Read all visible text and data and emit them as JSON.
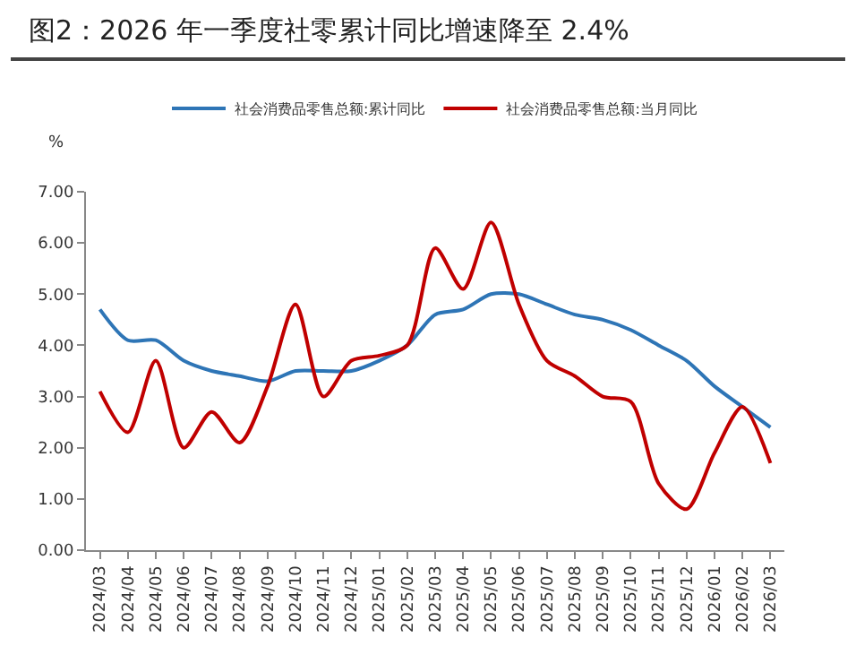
{
  "chart_data": {
    "type": "line",
    "title": "图2：2026 年一季度社零累计同比增速降至 2.4%",
    "ylabel": "%",
    "categories": [
      "2024/03",
      "2024/04",
      "2024/05",
      "2024/06",
      "2024/07",
      "2024/08",
      "2024/09",
      "2024/10",
      "2024/11",
      "2024/12",
      "2025/01",
      "2025/02",
      "2025/03",
      "2025/04",
      "2025/05",
      "2025/06",
      "2025/07",
      "2025/08",
      "2025/09",
      "2025/10",
      "2025/11",
      "2025/12",
      "2026/01",
      "2026/02",
      "2026/03"
    ],
    "series": [
      {
        "name": "社会消费品零售总额:累计同比",
        "color": "#2e75b6",
        "values": [
          4.7,
          4.1,
          4.1,
          3.7,
          3.5,
          3.4,
          3.3,
          3.5,
          3.5,
          3.5,
          3.7,
          4.0,
          4.6,
          4.7,
          5.0,
          5.0,
          4.8,
          4.6,
          4.5,
          4.3,
          4.0,
          3.7,
          3.2,
          2.8,
          2.4
        ]
      },
      {
        "name": "社会消费品零售总额:当月同比",
        "color": "#c00000",
        "values": [
          3.1,
          2.3,
          3.7,
          2.0,
          2.7,
          2.1,
          3.2,
          4.8,
          3.0,
          3.7,
          3.8,
          4.0,
          5.9,
          5.1,
          6.4,
          4.8,
          3.7,
          3.4,
          3.0,
          2.9,
          1.3,
          0.8,
          1.9,
          2.8,
          1.7
        ]
      }
    ],
    "ylim": [
      0,
      7
    ],
    "yticks": [
      {
        "value": 0,
        "label": "0.00"
      },
      {
        "value": 1,
        "label": "1.00"
      },
      {
        "value": 2,
        "label": "2.00"
      },
      {
        "value": 3,
        "label": "3.00"
      },
      {
        "value": 4,
        "label": "4.00"
      },
      {
        "value": 5,
        "label": "5.00"
      },
      {
        "value": 6,
        "label": "6.00"
      },
      {
        "value": 7,
        "label": "7.00"
      }
    ],
    "grid": false,
    "legend": "top",
    "marker": "none",
    "line_style": "solid"
  }
}
